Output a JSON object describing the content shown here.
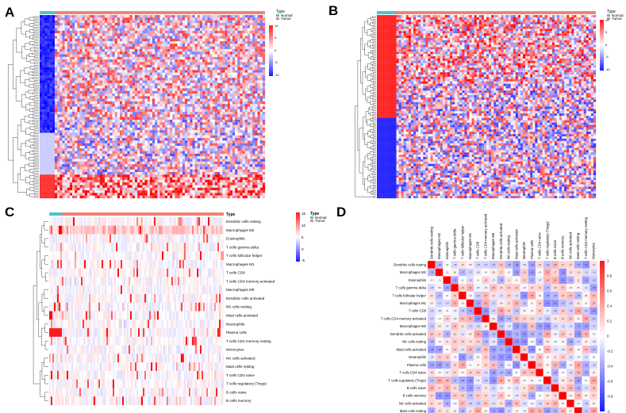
{
  "figure": {
    "panels": [
      {
        "id": "A",
        "letter": "A"
      },
      {
        "id": "B",
        "letter": "B"
      },
      {
        "id": "C",
        "letter": "C"
      },
      {
        "id": "D",
        "letter": "D"
      }
    ],
    "colors": {
      "normal": "#4fc3cf",
      "tumor": "#f0837a",
      "high": "#ff1a1a",
      "mid": "#ffffff",
      "low": "#1a1aff"
    }
  },
  "panel_a": {
    "legend_title": "Type",
    "legend_items": [
      "Normal",
      "Tumor"
    ],
    "scale_ticks": [
      "10",
      "5",
      "0",
      "-5",
      "-10"
    ]
  },
  "panel_b": {
    "legend_title": "Type",
    "legend_items": [
      "Normal",
      "Tumor"
    ],
    "scale_ticks": [
      "10",
      "5",
      "0",
      "-5",
      "-10"
    ]
  },
  "panel_c": {
    "legend_title": "Type",
    "legend_items": [
      "Normal",
      "Tumor"
    ],
    "scale_ticks": [
      "15",
      "10",
      "5",
      "0",
      "-5"
    ],
    "row_labels": [
      "Dendritic cells resting",
      "Macrophages M2",
      "Eosinophils",
      "T cells gamma delta",
      "T cells follicular helper",
      "Macrophages M1",
      "T cells CD8",
      "T cells CD4 memory activated",
      "Macrophages M0",
      "Dendritic cells activated",
      "NK cells resting",
      "Mast cells activated",
      "Neutrophils",
      "Plasma cells",
      "T cells CD4 memory resting",
      "Monocytes",
      "NK cells activated",
      "Mast cells resting",
      "T cells CD4 naive",
      "T cells regulatory (Tregs)",
      "B cells naive",
      "B cells memory"
    ]
  },
  "panel_d": {
    "scale_ticks": [
      "1",
      "0.8",
      "0.6",
      "0.4",
      "0.2",
      "0",
      "-0.2",
      "-0.4",
      "-0.6",
      "-0.8",
      "-1"
    ],
    "cell_types": [
      "Dendritic cells resting",
      "Macrophages M2",
      "Eosinophils",
      "T cells gamma delta",
      "T cells follicular helper",
      "Macrophages M1",
      "T cells CD8",
      "T cells CD4 memory activated",
      "Macrophages M0",
      "Dendritic cells activated",
      "NK cells resting",
      "Mast cells activated",
      "Neutrophils",
      "Plasma cells",
      "T cells CD4 naive",
      "T cells regulatory (Tregs)",
      "B cells naive",
      "B cells memory",
      "NK cells activated",
      "Mast cells resting",
      "T cells CD4 memory resting",
      "Monocytes"
    ]
  }
}
